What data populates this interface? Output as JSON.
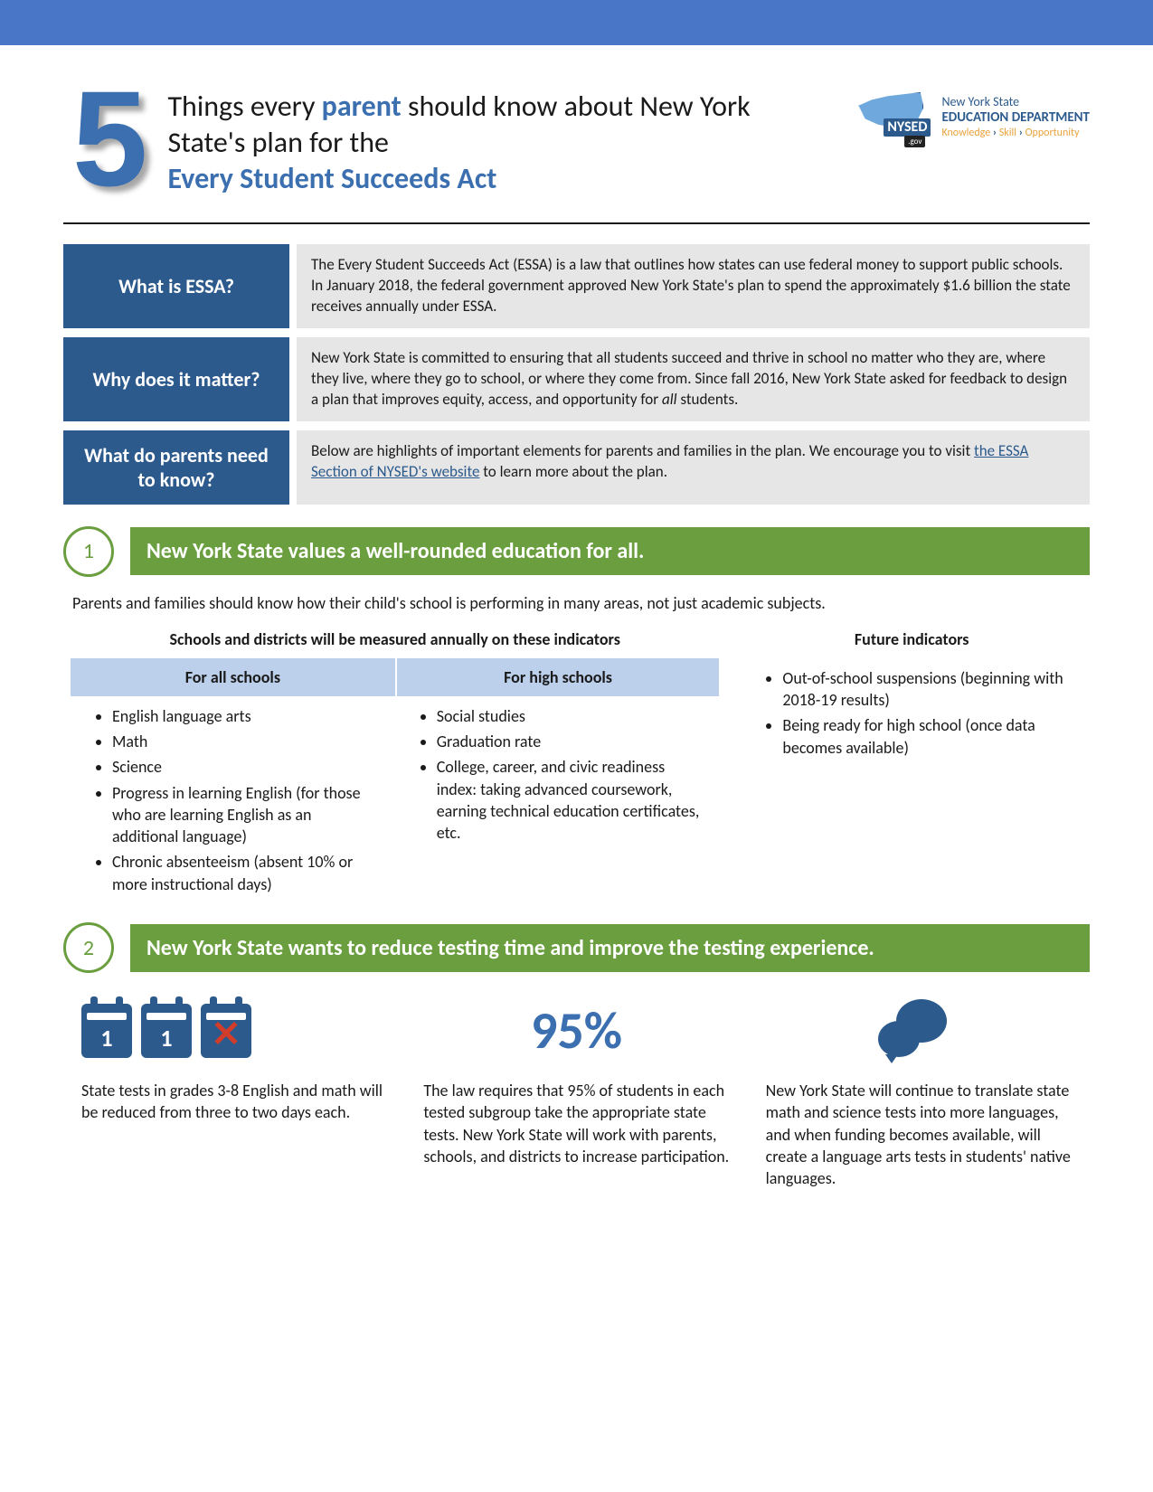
{
  "colors": {
    "topbar": "#4a76c7",
    "blue_dark": "#2c5a8c",
    "blue_mid": "#3b6fb0",
    "blue_light": "#bcd0ec",
    "green": "#6a9e3f",
    "green_border": "#6a9e3f",
    "grey_bg": "#e6e6e6",
    "text": "#1a1a1a",
    "orange": "#e8a33d",
    "red_x": "#d23c2a",
    "cal_white": "#ffffff"
  },
  "header": {
    "big_number": "5",
    "title_pre": "Things every ",
    "title_parent": "parent",
    "title_mid": " should know about New York State's plan for the ",
    "title_act": "Every Student Succeeds Act",
    "logo": {
      "badge": "NYSED",
      "gov": ".gov",
      "line1": "New York State",
      "line2": "EDUCATION DEPARTMENT",
      "k1": "Knowledge",
      "k2": "Skill",
      "k3": "Opportunity"
    }
  },
  "info": [
    {
      "label": "What is ESSA?",
      "body": "The Every Student Succeeds Act (ESSA) is a law that outlines how states can use federal money to support public schools. In January 2018, the federal government approved New York State's plan to spend the approximately $1.6 billion the state receives annually under ESSA."
    },
    {
      "label": "Why does it matter?",
      "body_pre": "New York State is committed to ensuring that all students succeed and thrive in school no matter who they are, where they live, where they go to school, or where they come from. Since fall 2016, New York State asked for feedback to design a plan that improves equity, access, and opportunity for ",
      "body_em": "all",
      "body_post": " students."
    },
    {
      "label": "What do parents need to know?",
      "body_pre": "Below are highlights of important elements for parents and families in the plan. We encourage you to visit ",
      "link_text": "the ESSA Section of NYSED's website",
      "body_post": " to learn more about the plan."
    }
  ],
  "section1": {
    "num": "1",
    "title": "New York State values a well-rounded education for all.",
    "intro": "Parents and families should know how their child's school is performing in many areas, not just academic subjects.",
    "left_heading": "Schools and districts will be measured annually on these indicators",
    "right_heading": "Future indicators",
    "col_a_heading": "For all schools",
    "col_b_heading": "For high schools",
    "col_a_items": [
      "English language arts",
      "Math",
      "Science",
      "Progress in learning English (for those who are learning English as an additional language)",
      "Chronic absenteeism (absent 10% or more instructional days)"
    ],
    "col_b_items": [
      "Social studies",
      "Graduation rate",
      "College, career, and civic readiness index: taking advanced coursework, earning technical education certificates, etc."
    ],
    "future_items": [
      "Out-of-school suspensions (beginning with 2018-19 results)",
      "Being ready for high school (once data becomes available)"
    ]
  },
  "section2": {
    "num": "2",
    "title": "New York State wants to reduce testing time and improve the testing experience.",
    "cal_day": "1",
    "col1": "State tests in grades 3-8 English and math will be reduced from three to two days each.",
    "pct": "95%",
    "col2": "The law requires that 95% of students in each tested subgroup take the appropriate state tests. New York State will work with parents, schools, and districts to increase participation.",
    "col3": "New York State will continue to translate state math and science tests into more languages, and when funding becomes available, will create a language arts tests in students' native languages."
  }
}
